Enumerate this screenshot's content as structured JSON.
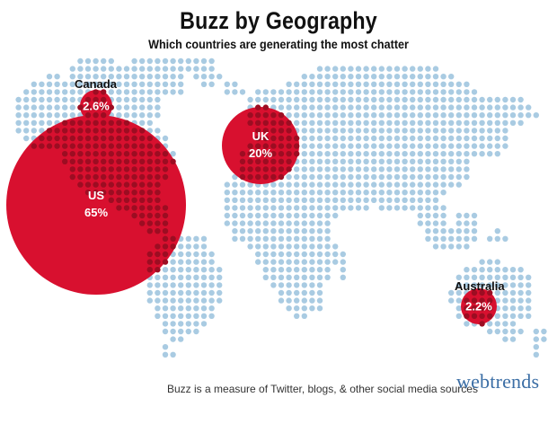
{
  "header": {
    "title": "Buzz by Geography",
    "subtitle": "Which countries are generating the most chatter"
  },
  "colors": {
    "dots": "#a9cbe2",
    "bubble": "#d8102f",
    "bubble_dots": "#9c0d22",
    "text": "#111111",
    "brand": "#3b6ea5"
  },
  "regions": [
    {
      "name": "Canada",
      "share_pct": 2.6,
      "value_label": "2.6%",
      "name_outside": true
    },
    {
      "name": "US",
      "share_pct": 65,
      "value_label": "65%",
      "name_outside": false
    },
    {
      "name": "UK",
      "share_pct": 20,
      "value_label": "20%",
      "name_outside": false
    },
    {
      "name": "Australia",
      "share_pct": 2.2,
      "value_label": "2.2%",
      "name_outside": true
    }
  ],
  "footer": {
    "note": "Buzz is a measure of Twitter, blogs, & other social media sources",
    "brand": "webtrends"
  }
}
